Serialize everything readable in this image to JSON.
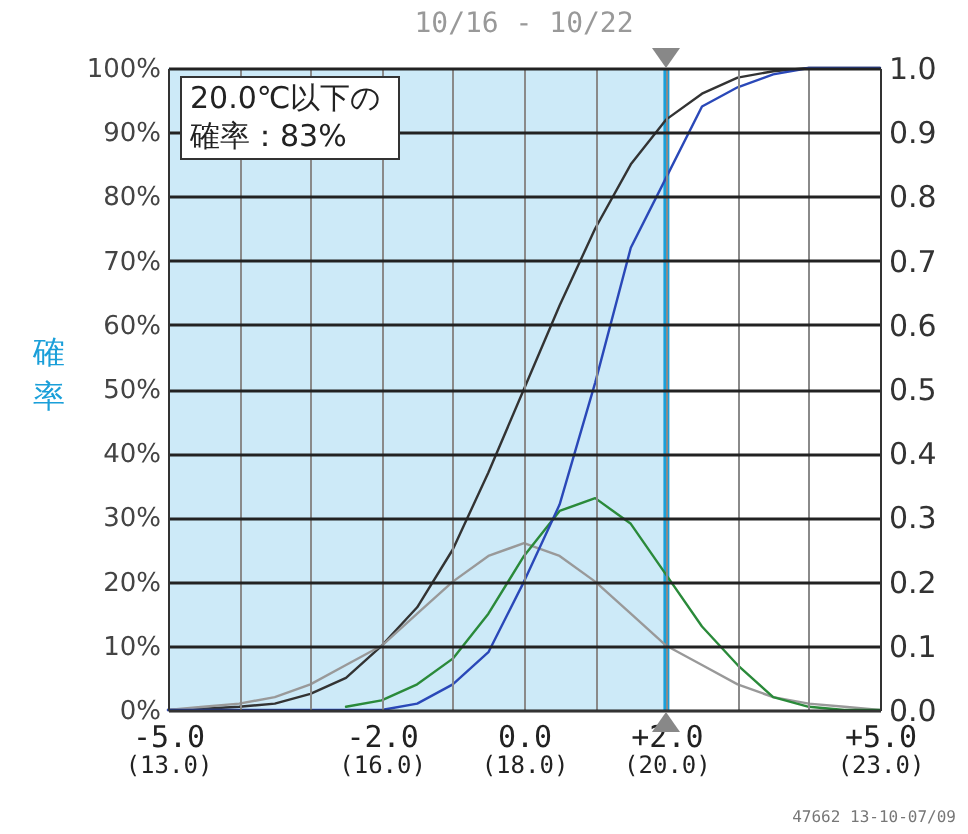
{
  "chart_data": {
    "type": "line",
    "title": "10/16 - 10/22",
    "ylabel": "確率",
    "annotations": [
      "20.0℃以下の確率：83%",
      "47662 13-10-07/09"
    ],
    "x": [
      -5,
      -4.5,
      -4,
      -3.5,
      -3,
      -2.5,
      -2,
      -1.5,
      -1,
      -0.5,
      0,
      0.5,
      1,
      1.5,
      2,
      2.5,
      3,
      3.5,
      4,
      4.5,
      5
    ],
    "series": [
      {
        "color": "#333333",
        "values": [
          0,
          0.2,
          0.5,
          1,
          2.5,
          5,
          10,
          16,
          25,
          37,
          50,
          63,
          75,
          85,
          92,
          96,
          98.5,
          99.5,
          100,
          100,
          100
        ]
      },
      {
        "color": "#999999",
        "values": [
          0,
          0.5,
          1,
          2,
          4,
          7,
          10,
          15,
          20,
          24,
          26,
          24,
          20,
          15,
          10,
          7,
          4,
          2,
          1,
          0.5,
          0
        ]
      },
      {
        "color": "#2a8a3a",
        "values": [
          null,
          null,
          null,
          null,
          null,
          0.5,
          1.5,
          4,
          8,
          15,
          24,
          31,
          33,
          29,
          21,
          13,
          7,
          2,
          0.5,
          0,
          0
        ]
      },
      {
        "color": "#2a48b8",
        "values": [
          0,
          0,
          0,
          0,
          0,
          0,
          0,
          1,
          4,
          9,
          20,
          32,
          51,
          72,
          83,
          94,
          97,
          99,
          100,
          100,
          100
        ]
      }
    ],
    "xlim": [
      -5,
      5
    ],
    "xticks": [
      {
        "value": -5,
        "label": "-5.0"
      },
      {
        "value": -4,
        "label": null
      },
      {
        "value": -3,
        "label": null
      },
      {
        "value": -2,
        "label": "-2.0"
      },
      {
        "value": -1,
        "label": null
      },
      {
        "value": 0,
        "label": "0.0"
      },
      {
        "value": 1,
        "label": null
      },
      {
        "value": 2,
        "label": "+2.0"
      },
      {
        "value": 3,
        "label": null
      },
      {
        "value": 4,
        "label": null
      },
      {
        "value": 5,
        "label": "+5.0"
      }
    ],
    "x2lim": [
      13,
      23
    ],
    "x2ticks": [
      {
        "value": 13,
        "label": "(13.0)"
      },
      {
        "value": 16,
        "label": "(16.0)"
      },
      {
        "value": 18,
        "label": "(18.0)"
      },
      {
        "value": 20,
        "label": "(20.0)"
      },
      {
        "value": 23,
        "label": "(23.0)"
      }
    ],
    "ylim": [
      0,
      100
    ],
    "yticks": [
      {
        "value": 0,
        "label": "0%"
      },
      {
        "value": 10,
        "label": "10%"
      },
      {
        "value": 20,
        "label": "20%"
      },
      {
        "value": 30,
        "label": "30%"
      },
      {
        "value": 40,
        "label": "40%"
      },
      {
        "value": 50,
        "label": "50%"
      },
      {
        "value": 60,
        "label": "60%"
      },
      {
        "value": 70,
        "label": "70%"
      },
      {
        "value": 80,
        "label": "80%"
      },
      {
        "value": 90,
        "label": "90%"
      },
      {
        "value": 100,
        "label": "100%"
      }
    ],
    "y2lim": [
      0,
      1
    ],
    "y2ticks": [
      {
        "value": 0,
        "label": "0.0"
      },
      {
        "value": 0.1,
        "label": "0.1"
      },
      {
        "value": 0.2,
        "label": "0.2"
      },
      {
        "value": 0.3,
        "label": "0.3"
      },
      {
        "value": 0.4,
        "label": "0.4"
      },
      {
        "value": 0.5,
        "label": "0.5"
      },
      {
        "value": 0.6,
        "label": "0.6"
      },
      {
        "value": 0.7,
        "label": "0.7"
      },
      {
        "value": 0.8,
        "label": "0.8"
      },
      {
        "value": 0.9,
        "label": "0.9"
      },
      {
        "value": 1,
        "label": "1.0"
      }
    ],
    "bands": [
      {
        "axis": "x",
        "from": -5,
        "to": 2,
        "color": "#cdeaf8"
      }
    ],
    "ref_lines": [
      {
        "axis": "x",
        "value": 2,
        "color": "#1a9fd9"
      }
    ],
    "grid": true,
    "marker": "none",
    "line_style": "solid"
  }
}
